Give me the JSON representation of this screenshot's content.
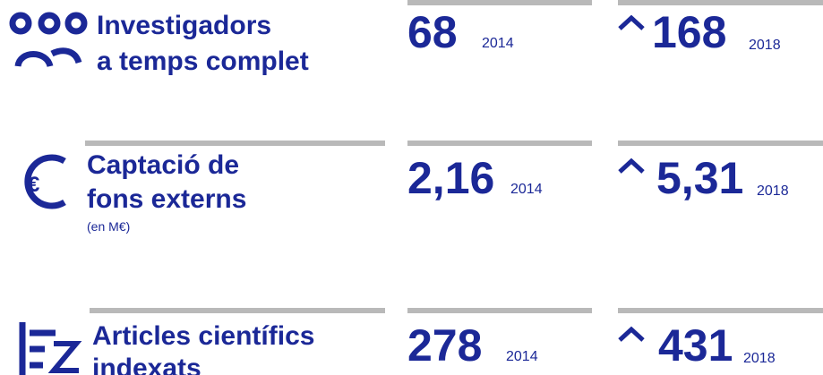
{
  "rows": [
    {
      "label": [
        "Investigadors",
        "a temps complet"
      ],
      "before": {
        "value": "68",
        "year": "2014"
      },
      "after": {
        "value": "168",
        "year": "2018"
      }
    },
    {
      "label": [
        "Captació de",
        "fons externs"
      ],
      "note": "(en M€)",
      "before": {
        "value": "2,16",
        "year": "2014"
      },
      "after": {
        "value": "5,31",
        "year": "2018"
      }
    },
    {
      "label": [
        "Articles científics",
        "indexats"
      ],
      "before": {
        "value": "278",
        "year": "2014"
      },
      "after": {
        "value": "431",
        "year": "2018"
      }
    }
  ]
}
